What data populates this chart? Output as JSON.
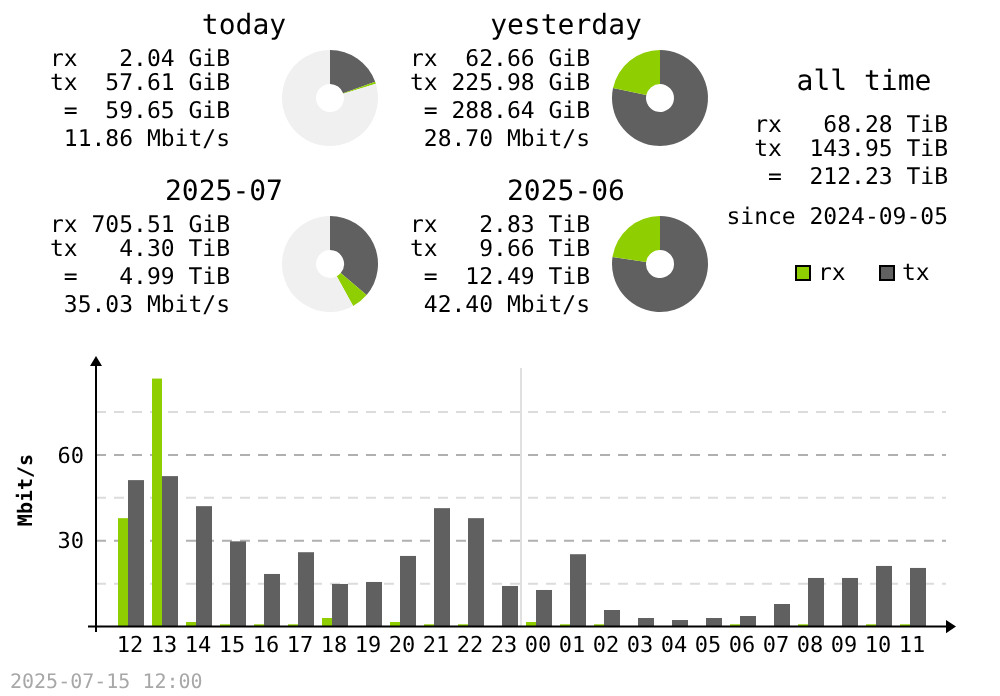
{
  "chart_data": [
    {
      "type": "donut",
      "title": "today",
      "categories": [
        null,
        null,
        null
      ],
      "values": [
        19.5,
        0.7,
        79.8
      ],
      "colors": [
        "#606060",
        "#8fce00",
        "#f0f0f0"
      ],
      "annotations": [
        "rx   2.04 GiB",
        "tx  57.61 GiB",
        "=  59.65 GiB",
        "11.86 Mbit/s"
      ]
    },
    {
      "type": "donut",
      "title": "yesterday",
      "categories": [
        null,
        null
      ],
      "values": [
        78.3,
        21.7
      ],
      "colors": [
        "#606060",
        "#8fce00"
      ],
      "annotations": [
        "rx  62.66 GiB",
        "tx 225.98 GiB",
        "= 288.64 GiB",
        "28.70 Mbit/s"
      ]
    },
    {
      "type": "donut",
      "title": "2025-07",
      "categories": [
        null,
        null,
        null
      ],
      "values": [
        36.2,
        5.8,
        58
      ],
      "colors": [
        "#606060",
        "#8fce00",
        "#f0f0f0"
      ],
      "annotations": [
        "rx 705.51 GiB",
        "tx   4.30 TiB",
        "=   4.99 TiB",
        "35.03 Mbit/s"
      ]
    },
    {
      "type": "donut",
      "title": "2025-06",
      "categories": [
        null,
        null
      ],
      "values": [
        77.3,
        22.7
      ],
      "colors": [
        "#606060",
        "#8fce00"
      ],
      "annotations": [
        "rx   2.83 TiB",
        "tx   9.66 TiB",
        "=  12.49 TiB",
        "42.40 Mbit/s"
      ]
    },
    {
      "type": "other",
      "title": "all time",
      "annotations": [
        "rx   68.28 TiB",
        "tx  143.95 TiB",
        "=  212.23 TiB",
        "since 2024-09-05"
      ]
    },
    {
      "type": "bar",
      "ylabel": "Mbit/s",
      "categories": [
        "12",
        "13",
        "14",
        "15",
        "16",
        "17",
        "18",
        "19",
        "20",
        "21",
        "22",
        "23",
        "00",
        "01",
        "02",
        "03",
        "04",
        "05",
        "06",
        "07",
        "08",
        "09",
        "10",
        "11"
      ],
      "series": [
        {
          "name": "rx",
          "color": "#8fce00",
          "values": [
            37.9,
            86.7,
            1.6,
            0.8,
            0.8,
            0.8,
            3.0,
            0,
            1.6,
            0.8,
            0.8,
            0,
            1.6,
            0.8,
            0.8,
            0,
            0,
            0,
            0.8,
            0,
            0.8,
            0,
            0.8,
            0.8
          ]
        },
        {
          "name": "tx",
          "color": "#606060",
          "values": [
            51.2,
            52.6,
            42.1,
            29.8,
            18.4,
            26.0,
            14.9,
            15.6,
            24.7,
            41.4,
            37.9,
            14.2,
            12.8,
            25.3,
            5.8,
            3.0,
            2.3,
            3.0,
            3.7,
            7.9,
            17.0,
            17.0,
            21.2,
            20.5
          ]
        }
      ],
      "ylim": [
        0,
        92
      ],
      "yticks": [
        {
          "value": 15,
          "label": null
        },
        30,
        {
          "value": 45,
          "label": null
        },
        60,
        {
          "value": 75,
          "label": null
        }
      ],
      "grid": "y",
      "legend": "top right",
      "ref_lines": [
        {
          "axis": "x",
          "value": "00",
          "color": "#e0e0e0"
        }
      ],
      "annotations": [
        "2025-07-15 12:00"
      ]
    }
  ]
}
